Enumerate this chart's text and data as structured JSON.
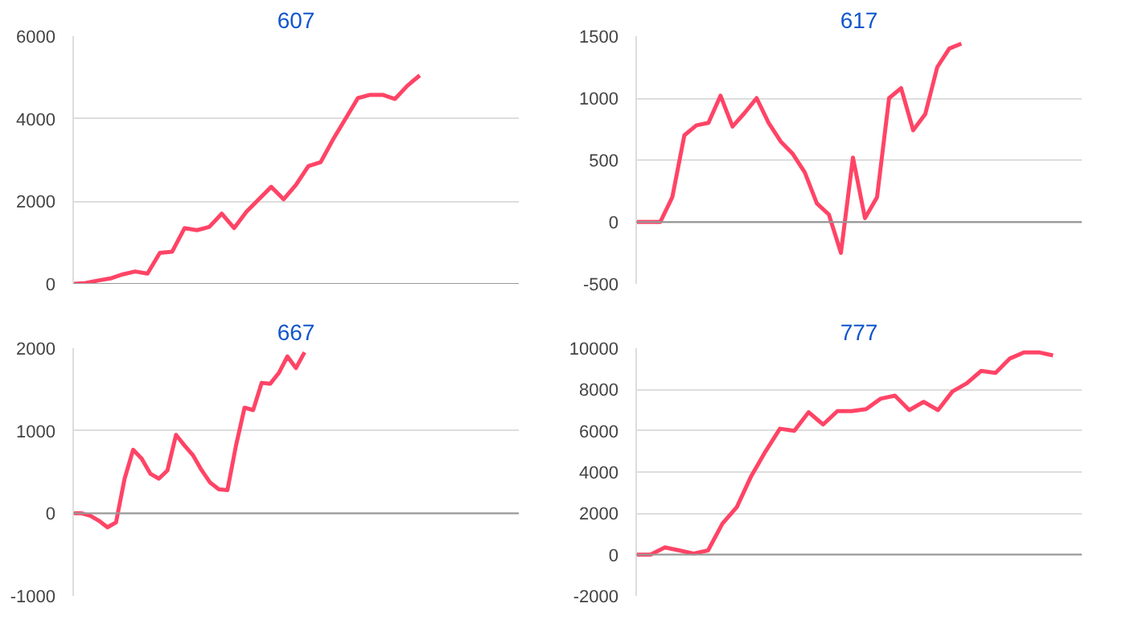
{
  "chart_data": [
    {
      "type": "line",
      "title": "607",
      "categories": [
        null,
        null,
        null,
        null,
        null,
        null,
        null,
        null,
        null,
        null,
        null,
        null,
        null,
        null,
        null,
        null,
        null,
        null,
        null,
        null,
        null,
        null,
        null,
        null,
        null,
        null,
        null,
        null,
        null,
        null,
        null,
        null,
        null,
        null,
        null,
        null,
        null
      ],
      "series": [
        {
          "color": "#ff4466",
          "values": [
            0,
            20,
            80,
            130,
            230,
            300,
            250,
            750,
            780,
            1350,
            1300,
            1380,
            1700,
            1350,
            1750,
            2050,
            2350,
            2050,
            2400,
            2850,
            2950,
            3500,
            4000,
            4500,
            4580,
            4580,
            4480,
            4800,
            5050,
            null,
            null,
            null,
            null,
            null,
            null,
            null,
            null
          ]
        }
      ],
      "ylim": [
        0,
        6000
      ],
      "yticks": [
        0,
        2000,
        4000,
        6000
      ],
      "grid": "y",
      "tick_labels": "y",
      "ref_lines": [
        {
          "axis": "y",
          "value": 0,
          "color": "#999999"
        }
      ]
    },
    {
      "type": "line",
      "title": "617",
      "categories": [
        null,
        null,
        null,
        null,
        null,
        null,
        null,
        null,
        null,
        null,
        null,
        null,
        null,
        null,
        null,
        null,
        null,
        null,
        null,
        null,
        null,
        null,
        null,
        null,
        null,
        null,
        null,
        null,
        null,
        null,
        null,
        null,
        null,
        null,
        null,
        null,
        null,
        null
      ],
      "series": [
        {
          "color": "#ff4466",
          "values": [
            0,
            0,
            0,
            200,
            700,
            780,
            800,
            1020,
            770,
            880,
            1000,
            800,
            650,
            550,
            400,
            150,
            60,
            -250,
            520,
            30,
            200,
            1000,
            1080,
            740,
            870,
            1250,
            1400,
            1440,
            null,
            null,
            null,
            null,
            null,
            null,
            null,
            null,
            null,
            null
          ]
        }
      ],
      "ylim": [
        -500,
        1500
      ],
      "yticks": [
        -500,
        0,
        500,
        1000,
        1500
      ],
      "grid": "y",
      "tick_labels": "y",
      "ref_lines": [
        {
          "axis": "y",
          "value": 0,
          "color": "#999999"
        }
      ]
    },
    {
      "type": "line",
      "title": "667",
      "categories": [
        null,
        null,
        null,
        null,
        null,
        null,
        null,
        null,
        null,
        null,
        null,
        null,
        null,
        null,
        null,
        null,
        null,
        null,
        null,
        null,
        null,
        null,
        null,
        null,
        null,
        null,
        null,
        null,
        null,
        null,
        null,
        null,
        null,
        null,
        null,
        null,
        null,
        null,
        null,
        null,
        null,
        null,
        null,
        null,
        null,
        null,
        null,
        null,
        null,
        null,
        null,
        null,
        null
      ],
      "series": [
        {
          "color": "#ff4466",
          "values": [
            0,
            0,
            -30,
            -90,
            -170,
            -110,
            420,
            770,
            660,
            480,
            420,
            520,
            950,
            820,
            700,
            520,
            370,
            290,
            280,
            820,
            1280,
            1250,
            1580,
            1570,
            1700,
            1900,
            1760,
            1950,
            null,
            null,
            null,
            null,
            null,
            null,
            null,
            null,
            null,
            null,
            null,
            null,
            null,
            null,
            null,
            null,
            null,
            null,
            null,
            null,
            null,
            null,
            null,
            null,
            null
          ]
        }
      ],
      "ylim": [
        -1000,
        2000
      ],
      "yticks": [
        -1000,
        0,
        1000,
        2000
      ],
      "grid": "y",
      "tick_labels": "y",
      "ref_lines": [
        {
          "axis": "y",
          "value": 0,
          "color": "#999999"
        }
      ]
    },
    {
      "type": "line",
      "title": "777",
      "categories": [
        null,
        null,
        null,
        null,
        null,
        null,
        null,
        null,
        null,
        null,
        null,
        null,
        null,
        null,
        null,
        null,
        null,
        null,
        null,
        null,
        null,
        null,
        null,
        null,
        null,
        null,
        null,
        null,
        null,
        null,
        null,
        null
      ],
      "series": [
        {
          "color": "#ff4466",
          "values": [
            0,
            0,
            350,
            200,
            50,
            200,
            1500,
            2300,
            3800,
            5000,
            6100,
            6000,
            6900,
            6300,
            6950,
            6950,
            7050,
            7550,
            7700,
            7000,
            7400,
            7000,
            7900,
            8300,
            8900,
            8800,
            9500,
            9800,
            9800,
            9650,
            null,
            null
          ]
        }
      ],
      "ylim": [
        -2000,
        10000
      ],
      "yticks": [
        -2000,
        0,
        2000,
        4000,
        6000,
        8000,
        10000
      ],
      "grid": "y",
      "tick_labels": "y",
      "ref_lines": [
        {
          "axis": "y",
          "value": 0,
          "color": "#999999"
        }
      ]
    }
  ]
}
